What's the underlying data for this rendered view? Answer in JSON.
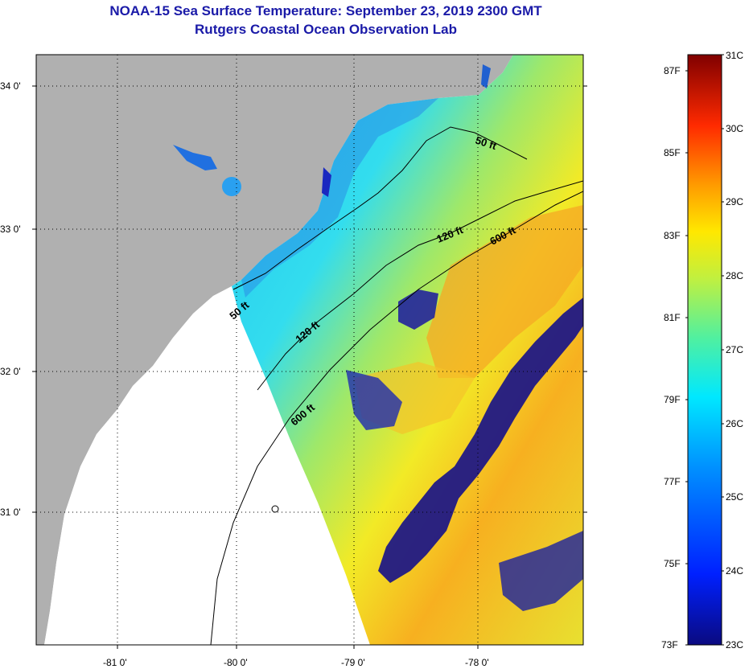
{
  "title": {
    "line1": "NOAA-15 Sea Surface Temperature:  September 23, 2019 2300 GMT",
    "line2": "Rutgers Coastal Ocean Observation Lab"
  },
  "map": {
    "lat_ticks": [
      "34 0'",
      "33 0'",
      "32 0'",
      "31 0'"
    ],
    "lon_ticks": [
      "-81 0'",
      "-80 0'",
      "-79 0'",
      "-78 0'"
    ],
    "contours": [
      {
        "label": "50 ft"
      },
      {
        "label": "120 ft"
      },
      {
        "label": "600 ft"
      },
      {
        "label": "50 ft"
      },
      {
        "label": "120 ft"
      },
      {
        "label": "600 ft"
      }
    ]
  },
  "colorbar": {
    "fahrenheit": [
      "87F",
      "85F",
      "83F",
      "81F",
      "79F",
      "77F",
      "75F",
      "73F"
    ],
    "celsius": [
      "31C",
      "30C",
      "29C",
      "28C",
      "27C",
      "26C",
      "25C",
      "24C",
      "23C"
    ]
  },
  "colors": {
    "title": "#1a1aa8",
    "land": "#b0b0b0"
  }
}
